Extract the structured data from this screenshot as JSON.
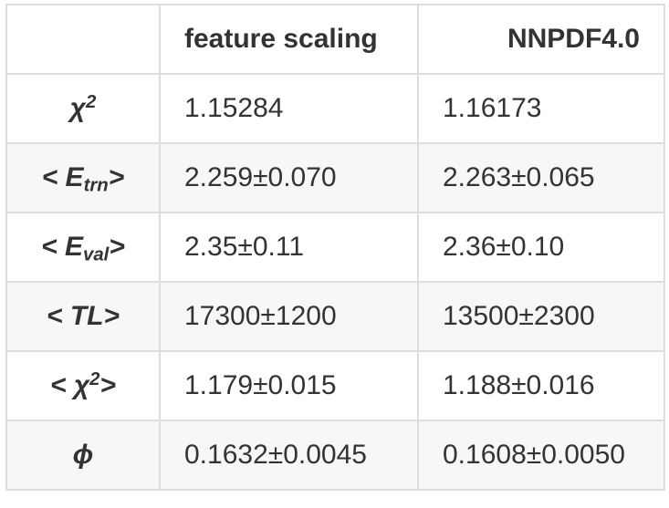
{
  "columns": [
    "",
    "feature scaling",
    "NNPDF4.0"
  ],
  "rows": [
    {
      "label": {
        "pre": "χ",
        "sub": "",
        "sup": "2",
        "post": ""
      },
      "values": [
        "1.15284",
        "1.16173"
      ]
    },
    {
      "label": {
        "pre": "< E",
        "sub": "trn",
        "sup": "",
        "post": ">"
      },
      "values": [
        "2.259±0.070",
        "2.263±0.065"
      ]
    },
    {
      "label": {
        "pre": "< E",
        "sub": "val",
        "sup": "",
        "post": ">"
      },
      "values": [
        "2.35±0.11",
        "2.36±0.10"
      ]
    },
    {
      "label": {
        "pre": "< TL>",
        "sub": "",
        "sup": "",
        "post": ""
      },
      "values": [
        "17300±1200",
        "13500±2300"
      ]
    },
    {
      "label": {
        "pre": "< χ",
        "sub": "",
        "sup": "2",
        "post": ">"
      },
      "values": [
        "1.179±0.015",
        "1.188±0.016"
      ]
    },
    {
      "label": {
        "pre": "ϕ",
        "sub": "",
        "sup": "",
        "post": ""
      },
      "values": [
        "0.1632±0.0045",
        "0.1608±0.0050"
      ]
    }
  ]
}
